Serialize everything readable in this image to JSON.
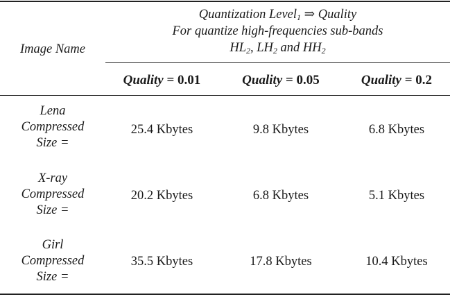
{
  "table": {
    "header": {
      "image_name": "Image Name",
      "quant_line1_pre": "Quantization Level",
      "quant_line1_sub": "1",
      "quant_line1_arrow": " ⇒ ",
      "quant_line1_post": "Quality",
      "quant_line2": "For quantize high-frequencies sub-bands",
      "quant_line3_a": "HL",
      "quant_line3_a_sub": "2",
      "quant_line3_b": ", LH",
      "quant_line3_b_sub": "2",
      "quant_line3_c": " and HH",
      "quant_line3_c_sub": "2"
    },
    "columns": [
      {
        "quality_word": "Quality",
        "suffix": " = 0.01"
      },
      {
        "quality_word": "Quality",
        "suffix": " = 0.05"
      },
      {
        "quality_word": "Quality",
        "suffix": " = 0.2"
      }
    ],
    "rows": [
      {
        "name": "Lena",
        "line2": "Compressed",
        "line3": "Size =",
        "values": [
          "25.4 Kbytes",
          "9.8 Kbytes",
          "6.8 Kbytes"
        ]
      },
      {
        "name": "X-ray",
        "line2": "Compressed",
        "line3": "Size =",
        "values": [
          "20.2 Kbytes",
          "6.8 Kbytes",
          "5.1 Kbytes"
        ]
      },
      {
        "name": "Girl",
        "line2": "Compressed",
        "line3": "Size =",
        "values": [
          "35.5 Kbytes",
          "17.8 Kbytes",
          "10.4 Kbytes"
        ]
      }
    ]
  }
}
